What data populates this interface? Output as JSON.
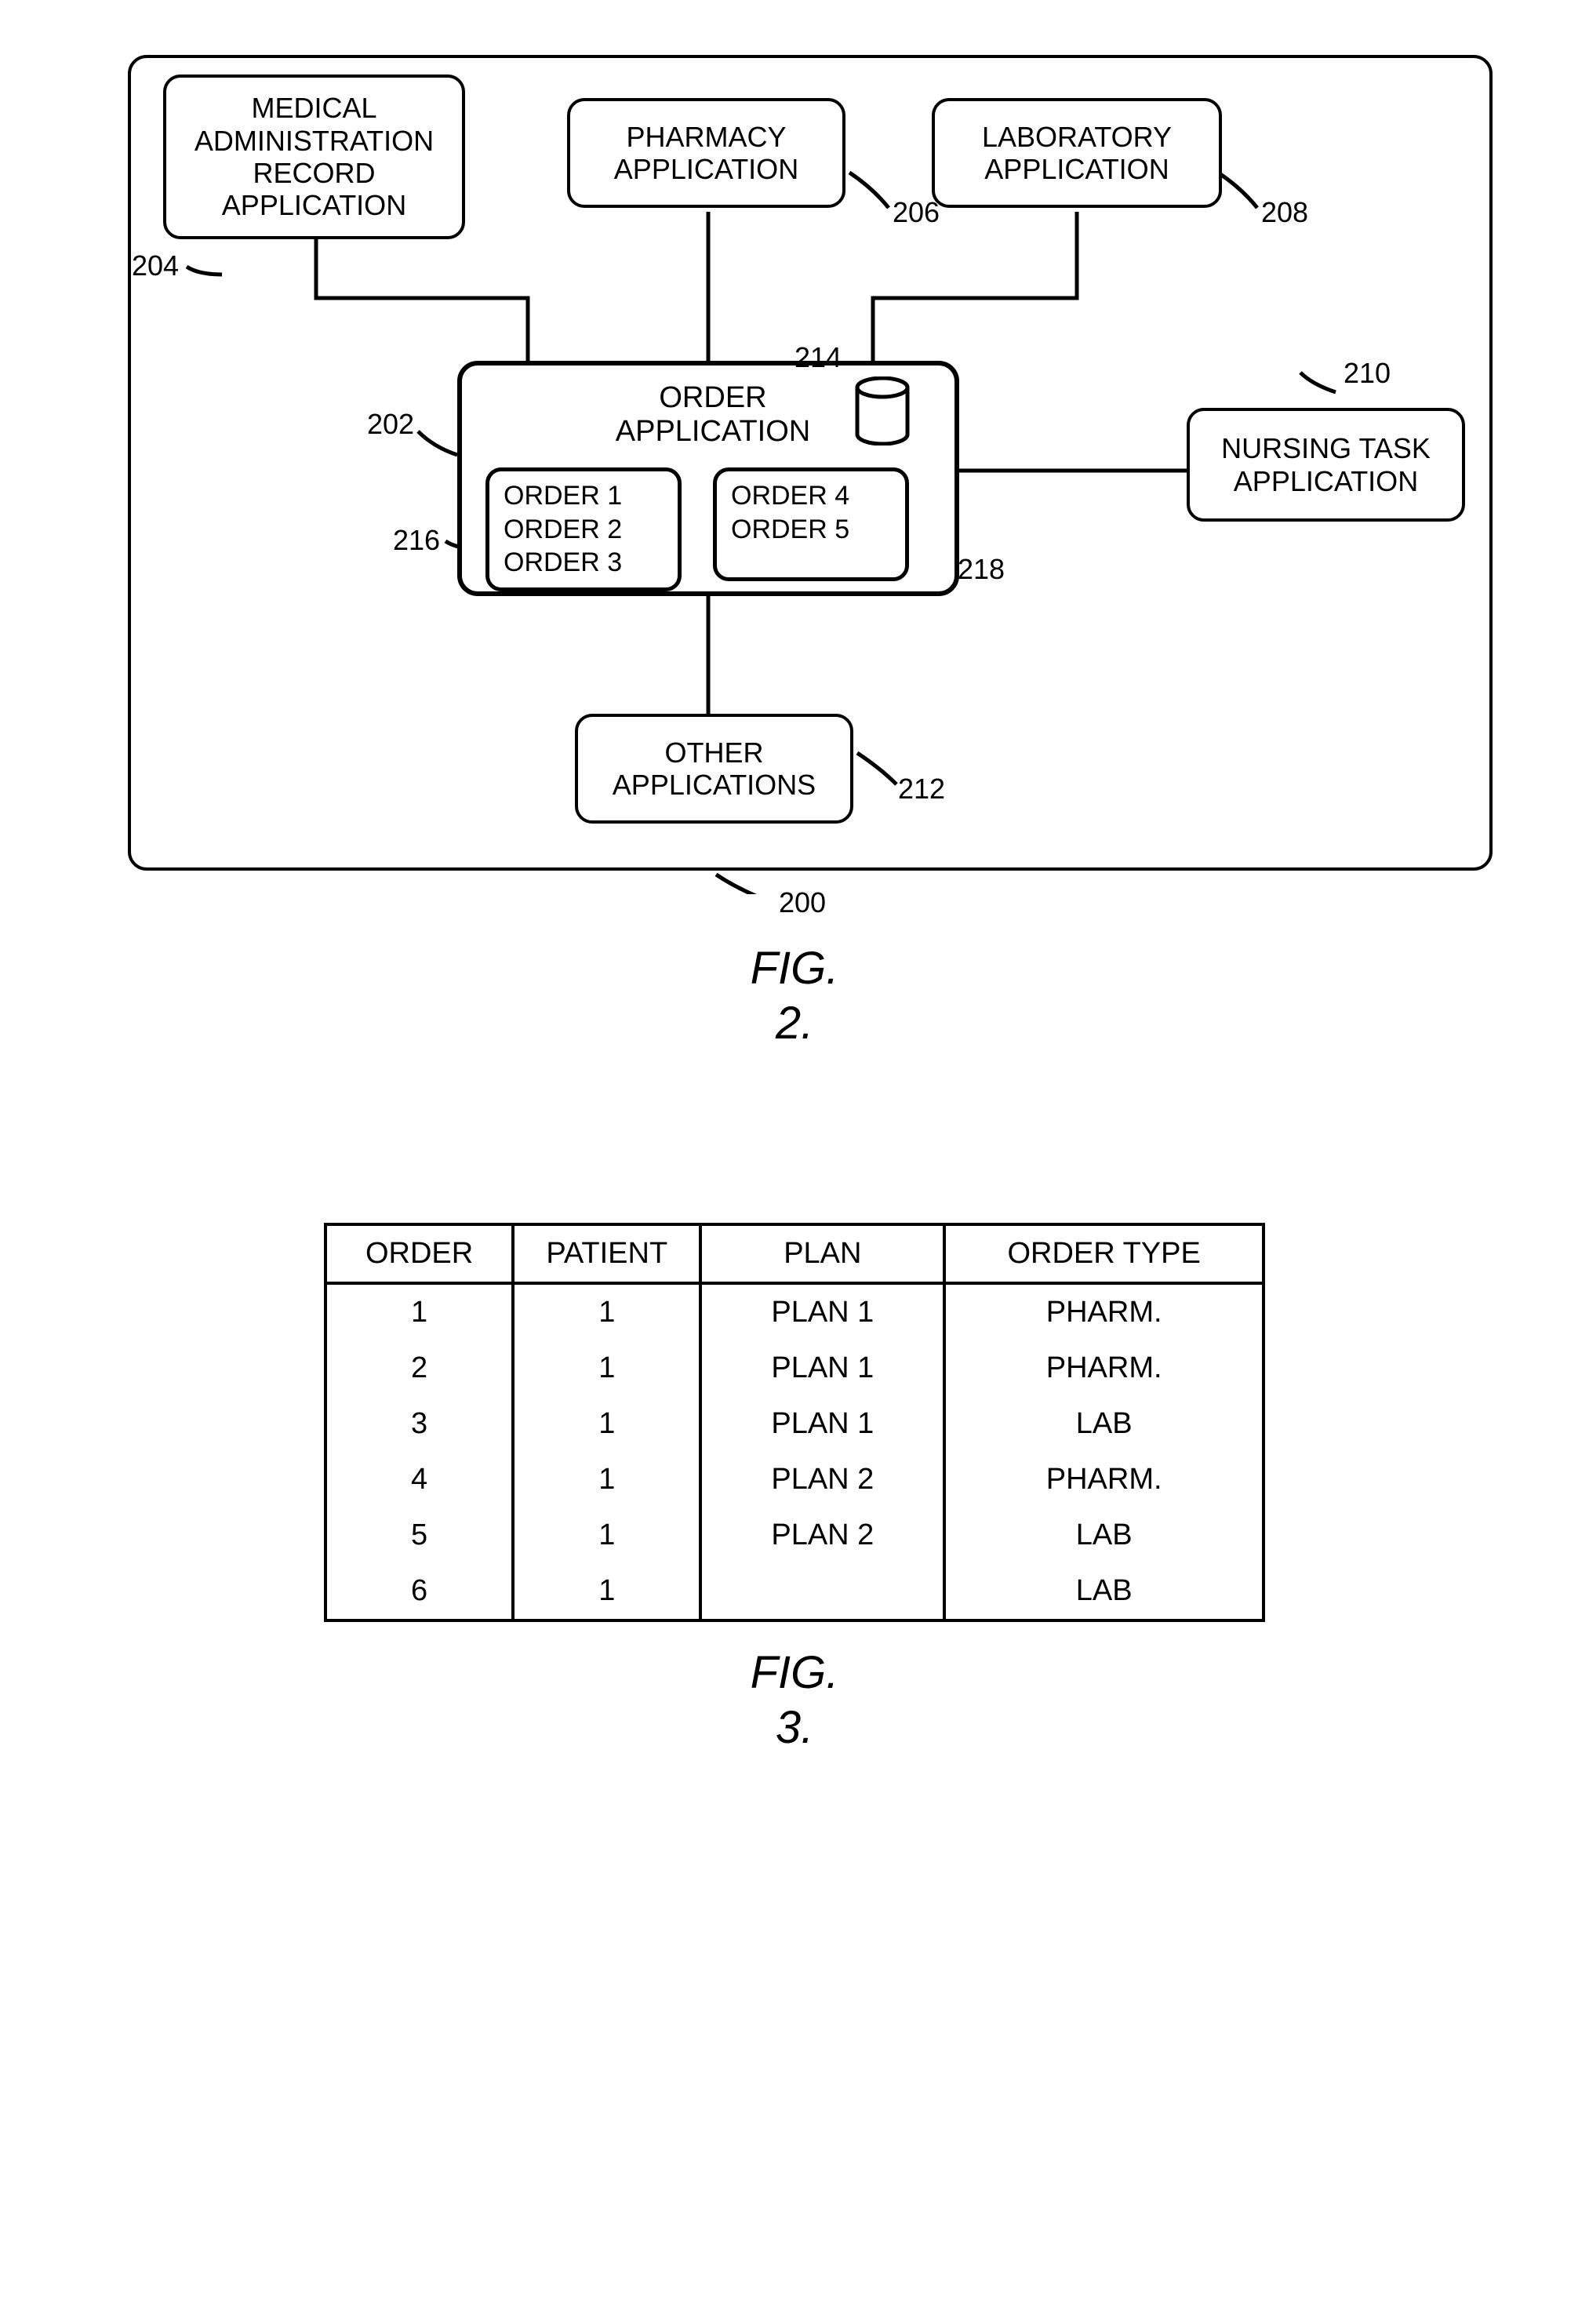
{
  "fig2": {
    "label_line1": "FIG.",
    "label_line2": "2.",
    "outer_ref": "200",
    "nodes": {
      "medadmin": {
        "text": "MEDICAL\nADMINISTRATION\nRECORD\nAPPLICATION",
        "ref": "204"
      },
      "pharmacy": {
        "text": "PHARMACY\nAPPLICATION",
        "ref": "206"
      },
      "lab": {
        "text": "LABORATORY\nAPPLICATION",
        "ref": "208"
      },
      "orderapp": {
        "title": "ORDER\nAPPLICATION",
        "ref": "202",
        "db_ref": "214"
      },
      "orders_a": {
        "text": "ORDER 1\nORDER 2\nORDER 3",
        "ref": "216"
      },
      "orders_b": {
        "text": "ORDER 4\nORDER 5",
        "ref": "218"
      },
      "nursing": {
        "text": "NURSING TASK\nAPPLICATION",
        "ref": "210"
      },
      "other": {
        "text": "OTHER\nAPPLICATIONS",
        "ref": "212"
      }
    }
  },
  "fig3": {
    "label_line1": "FIG.",
    "label_line2": "3.",
    "columns": [
      "ORDER",
      "PATIENT",
      "PLAN",
      "ORDER TYPE"
    ],
    "rows": [
      [
        "1",
        "1",
        "PLAN 1",
        "PHARM."
      ],
      [
        "2",
        "1",
        "PLAN 1",
        "PHARM."
      ],
      [
        "3",
        "1",
        "PLAN 1",
        "LAB"
      ],
      [
        "4",
        "1",
        "PLAN 2",
        "PHARM."
      ],
      [
        "5",
        "1",
        "PLAN 2",
        "LAB"
      ],
      [
        "6",
        "1",
        "",
        "LAB"
      ]
    ]
  }
}
